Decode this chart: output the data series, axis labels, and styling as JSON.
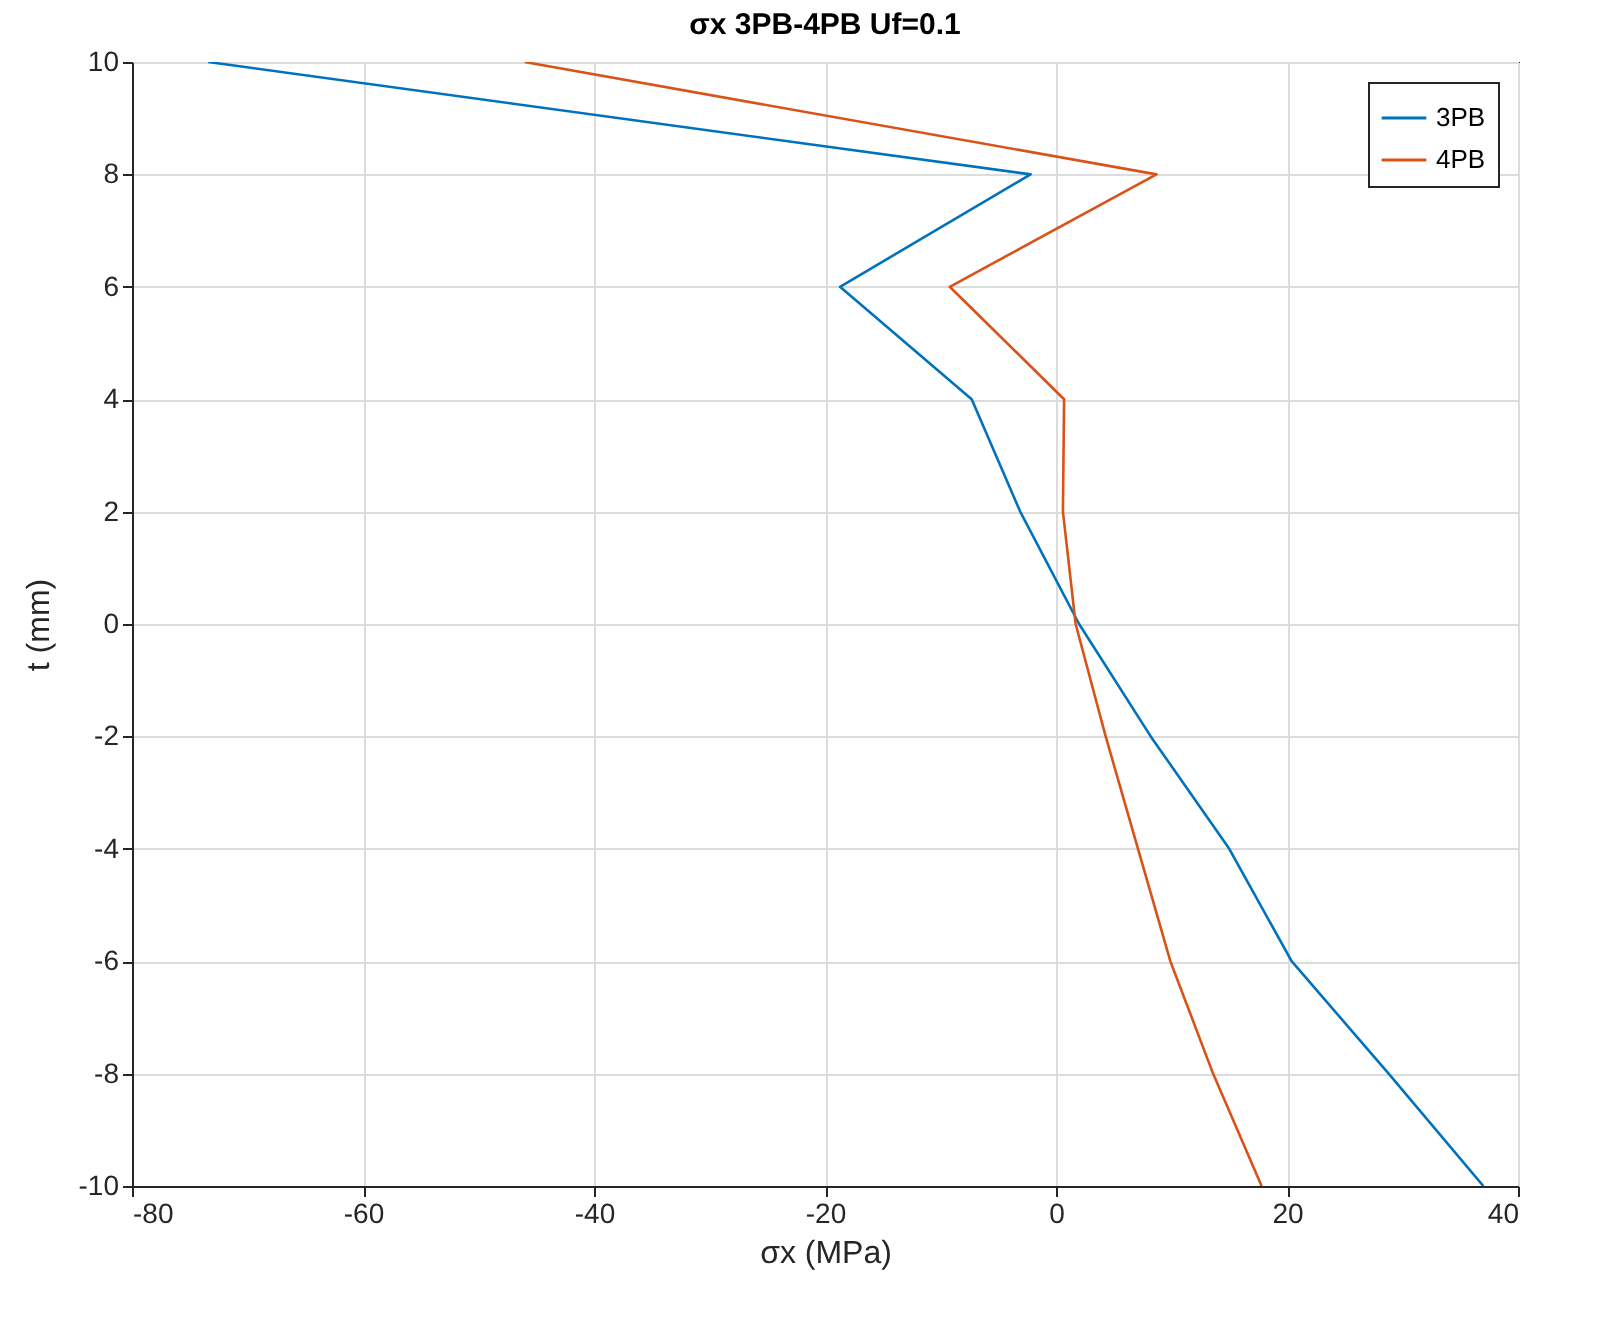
{
  "chart_data": {
    "type": "line",
    "title": "σx 3PB-4PB Uf=0.1",
    "xlabel": "σx (MPa)",
    "ylabel": "t (mm)",
    "xlim": [
      -80,
      40
    ],
    "ylim": [
      -10,
      10
    ],
    "xticks": [
      -80,
      -60,
      -40,
      -20,
      0,
      20,
      40
    ],
    "yticks": [
      -10,
      -8,
      -6,
      -4,
      -2,
      0,
      2,
      4,
      6,
      8,
      10
    ],
    "grid": true,
    "legend": "top right",
    "marker": "none",
    "line_style": "solid",
    "series": [
      {
        "name": "3PB",
        "color": "#0072bd",
        "x": [
          -73.4,
          -2.2,
          -18.7,
          -7.3,
          -3.1,
          2.0,
          8.2,
          15.0,
          20.4,
          28.8,
          37.0
        ],
        "values": [
          10,
          8,
          6,
          4,
          2,
          0,
          -2,
          -4,
          -6,
          -8,
          -10
        ]
      },
      {
        "name": "4PB",
        "color": "#d95319",
        "x": [
          -46.0,
          8.7,
          -9.2,
          0.7,
          0.6,
          1.7,
          4.3,
          7.1,
          9.9,
          13.6,
          17.8
        ],
        "values": [
          10,
          8,
          6,
          4,
          2,
          0,
          -2,
          -4,
          -6,
          -8,
          -10
        ]
      }
    ]
  }
}
